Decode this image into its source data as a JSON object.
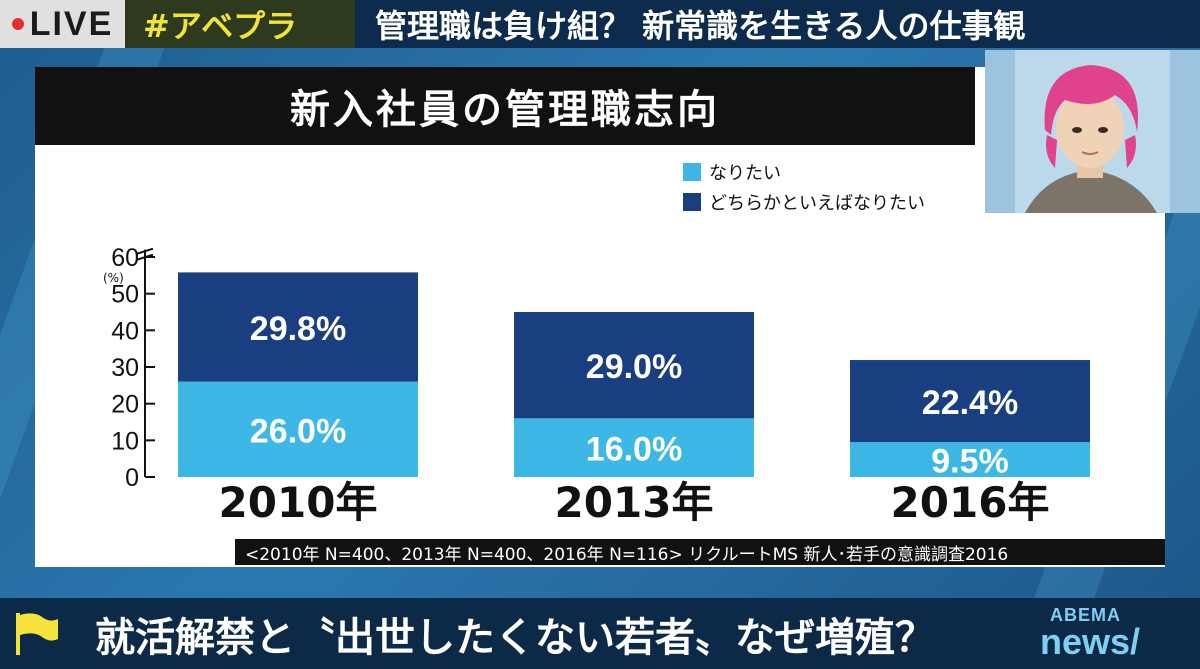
{
  "header": {
    "live_label": "LIVE",
    "hashtag": "#アベプラ",
    "topic": "管理職は負け組？ 新常識を生きる人の仕事観"
  },
  "panel": {
    "title": "新入社員の管理職志向",
    "source": "<2010年 N=400、2013年 N=400、2016年 N=116> リクルートMS 新人･若手の意識調査2016"
  },
  "chart_data": {
    "type": "bar",
    "stacked": true,
    "title": "新入社員の管理職志向",
    "ylabel": "(%)",
    "ylim": [
      0,
      60
    ],
    "yticks": [
      0,
      10,
      20,
      30,
      40,
      50,
      60
    ],
    "categories": [
      "2010年",
      "2013年",
      "2016年"
    ],
    "series": [
      {
        "name": "なりたい",
        "color": "#3db8e6",
        "values": [
          26.0,
          16.0,
          9.5
        ],
        "labels": [
          "26.0%",
          "16.0%",
          "9.5%"
        ]
      },
      {
        "name": "どちらかといえばなりたい",
        "color": "#1a3f80",
        "values": [
          29.8,
          29.0,
          22.4
        ],
        "labels": [
          "29.8%",
          "29.0%",
          "22.4%"
        ]
      }
    ],
    "legend_position": "top-right"
  },
  "bottom": {
    "headline": "就活解禁と〝出世したくない若者〟なぜ増殖？",
    "brand_top": "ABEMA",
    "brand_bottom": "news/"
  },
  "colors": {
    "light_bar": "#3db8e6",
    "dark_bar": "#1a3f80",
    "title_bg": "#111111"
  }
}
